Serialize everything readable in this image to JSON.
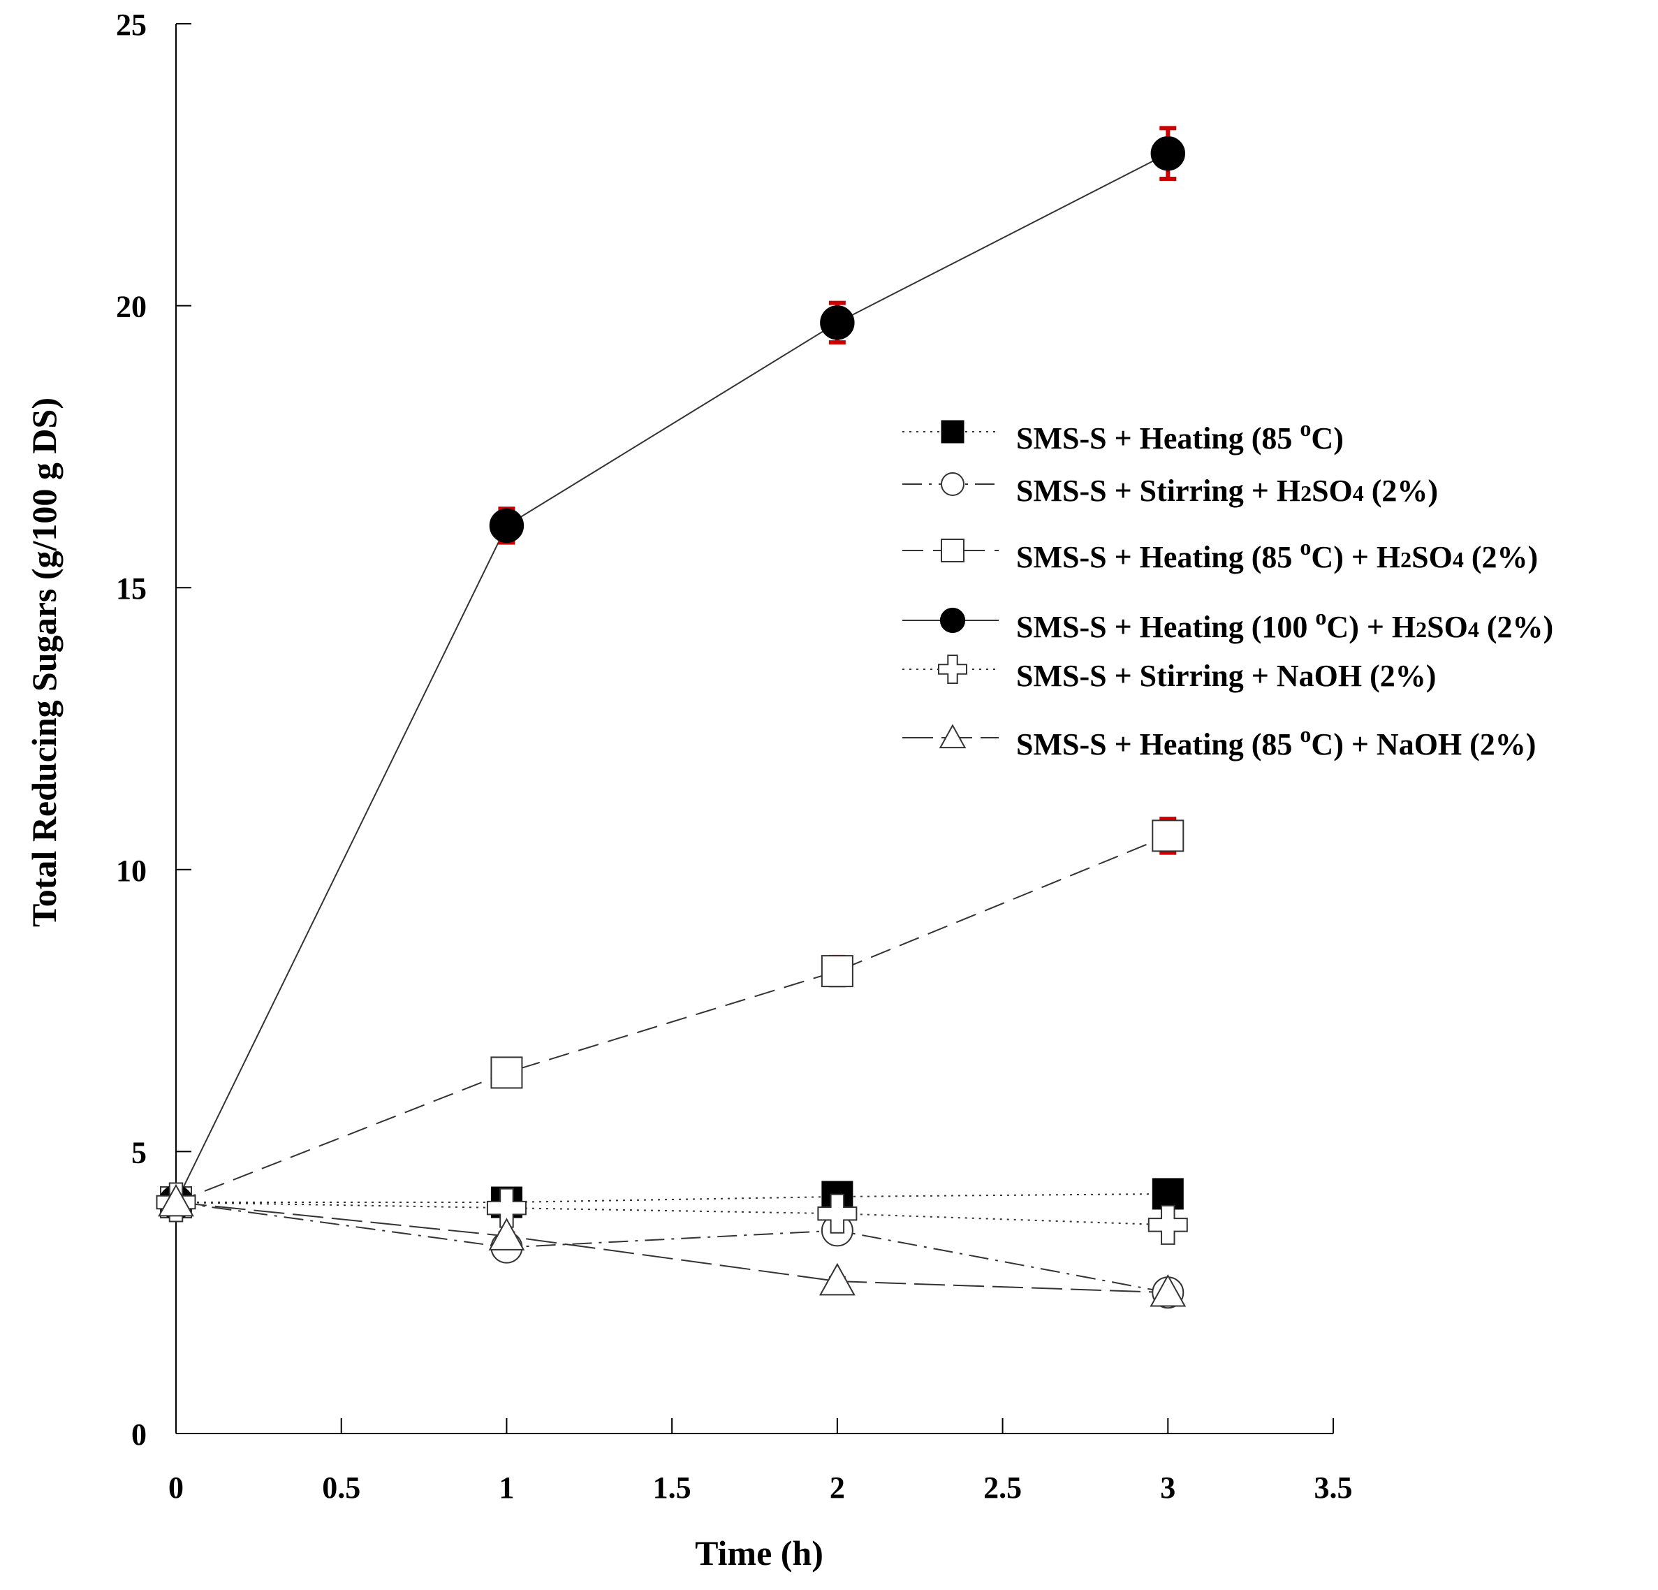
{
  "chart_data": {
    "type": "line",
    "title": "",
    "xlabel": "Time (h)",
    "ylabel": "Total Reducing Sugars (g/100 g DS)",
    "xlim": [
      0,
      3.5
    ],
    "ylim": [
      0,
      25
    ],
    "x_ticks": [
      0,
      0.5,
      1,
      1.5,
      2,
      2.5,
      3,
      3.5
    ],
    "x_tick_labels": [
      "0",
      "0.5",
      "1",
      "1.5",
      "2",
      "2.5",
      "3",
      "3.5"
    ],
    "y_ticks": [
      0,
      5,
      10,
      15,
      20,
      25
    ],
    "y_tick_labels": [
      "0",
      "5",
      "10",
      "15",
      "20",
      "25"
    ],
    "grid": false,
    "legend_position": "right",
    "error_bar_color": "#cc0000",
    "series": [
      {
        "name": "SMS-S + Heating (85 oC)",
        "legend_parts": [
          "SMS-S + Heating (85 ",
          "o",
          "C)"
        ],
        "marker": "filled-square",
        "line_style": "dotted",
        "x": [
          0,
          1,
          2,
          3
        ],
        "values": [
          4.1,
          4.1,
          4.2,
          4.25
        ],
        "errors": [
          0,
          0,
          0,
          0
        ]
      },
      {
        "name": "SMS-S + Stirring + H2SO4 (2%)",
        "legend_parts": [
          "SMS-S + Stirring + H",
          "2",
          "SO",
          "4",
          " (2%)"
        ],
        "marker": "open-circle",
        "line_style": "dash-dot",
        "x": [
          0,
          1,
          2,
          3
        ],
        "values": [
          4.1,
          3.3,
          3.6,
          2.5
        ],
        "errors": [
          0,
          0.15,
          0.1,
          0.08
        ]
      },
      {
        "name": "SMS-S + Heating (85 oC) + H2SO4 (2%)",
        "legend_parts": [
          "SMS-S + Heating (85 ",
          "o",
          "C) + H",
          "2",
          "SO",
          "4",
          " (2%)"
        ],
        "marker": "open-square",
        "line_style": "dashed",
        "x": [
          0,
          1,
          2,
          3
        ],
        "values": [
          4.1,
          6.4,
          8.2,
          10.6
        ],
        "errors": [
          0,
          0.2,
          0.25,
          0.3
        ]
      },
      {
        "name": "SMS-S + Heating (100 oC) + H2SO4 (2%)",
        "legend_parts": [
          "SMS-S + Heating (100 ",
          "o",
          "C) + H",
          "2",
          "SO",
          "4",
          " (2%)"
        ],
        "marker": "filled-circle",
        "line_style": "solid",
        "x": [
          0,
          1,
          2,
          3
        ],
        "values": [
          4.1,
          16.1,
          19.7,
          22.7
        ],
        "errors": [
          0,
          0.3,
          0.35,
          0.45
        ]
      },
      {
        "name": "SMS-S + Stirring + NaOH (2%)",
        "legend_parts": [
          "SMS-S + Stirring + NaOH (2%)"
        ],
        "marker": "open-cross",
        "line_style": "dotted",
        "x": [
          0,
          1,
          2,
          3
        ],
        "values": [
          4.1,
          4.0,
          3.9,
          3.7
        ],
        "errors": [
          0,
          0,
          0,
          0
        ]
      },
      {
        "name": "SMS-S + Heating (85 oC) + NaOH (2%)",
        "legend_parts": [
          "SMS-S + Heating (85 ",
          "o",
          "C) + NaOH (2%)"
        ],
        "marker": "open-triangle",
        "line_style": "long-dash",
        "x": [
          0,
          1,
          2,
          3
        ],
        "values": [
          4.1,
          3.5,
          2.7,
          2.5
        ],
        "errors": [
          0,
          0.05,
          0.05,
          0.05
        ]
      }
    ]
  }
}
